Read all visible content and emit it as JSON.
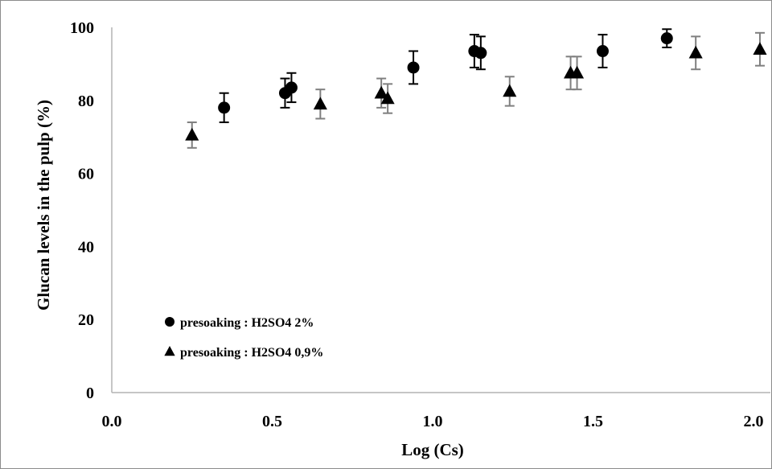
{
  "chart_data": {
    "type": "scatter",
    "title": "",
    "xlabel": "Log (Cs)",
    "ylabel": "Glucan levels  in the pulp (%)",
    "xlim": [
      0.0,
      2.0
    ],
    "ylim": [
      0,
      100
    ],
    "x_ticks": [
      "0.0",
      "0.5",
      "1.0",
      "1.5",
      "2.0"
    ],
    "y_ticks": [
      "0",
      "20",
      "40",
      "60",
      "80",
      "100"
    ],
    "grid": false,
    "legend_position": "bottom-left",
    "series": [
      {
        "name": "presoaking : H2SO4 2%",
        "marker": "circle",
        "color": "#000000",
        "errorbar_color": "#000000",
        "x": [
          0.35,
          0.54,
          0.56,
          0.94,
          1.13,
          1.15,
          1.53,
          1.73
        ],
        "y": [
          78,
          82,
          83.5,
          89,
          93.5,
          93,
          93.5,
          97
        ],
        "err": [
          4,
          4,
          4,
          4.5,
          4.5,
          4.5,
          4.5,
          2.5
        ]
      },
      {
        "name": "presoaking : H2SO4 0,9%",
        "marker": "triangle",
        "color": "#000000",
        "errorbar_color": "#7f7f7f",
        "x": [
          0.25,
          0.65,
          0.84,
          0.86,
          1.24,
          1.43,
          1.45,
          1.82,
          2.02
        ],
        "y": [
          70.5,
          79,
          82,
          80.5,
          82.5,
          87.5,
          87.5,
          93,
          94
        ],
        "err": [
          3.5,
          4,
          4,
          4,
          4,
          4.5,
          4.5,
          4.5,
          4.5
        ]
      }
    ]
  }
}
